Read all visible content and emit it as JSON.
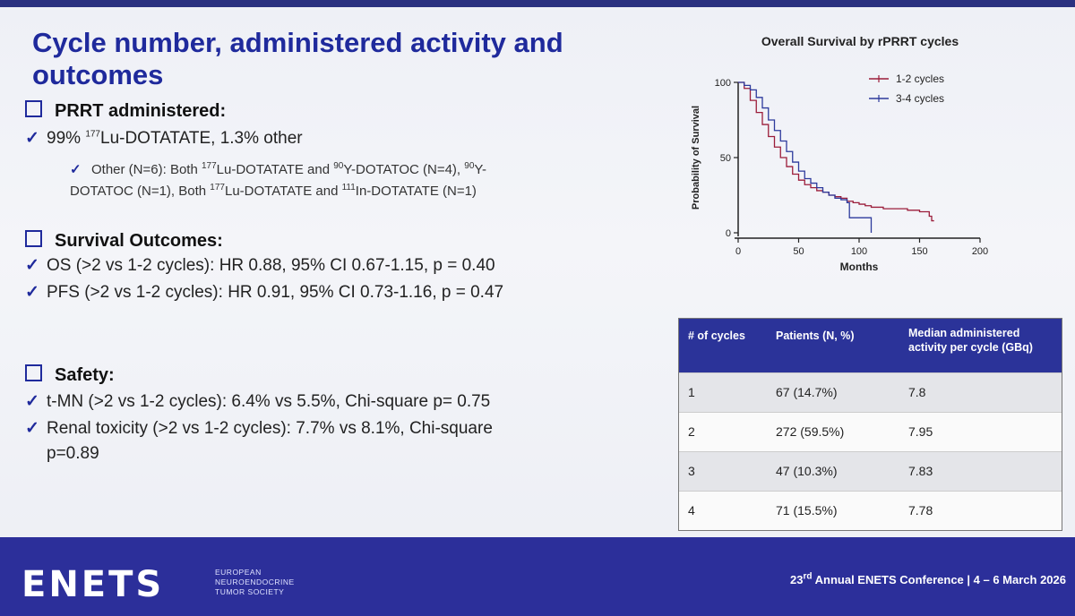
{
  "title": "Cycle number, administered activity and outcomes",
  "prrt": {
    "heading": "PRRT administered:",
    "line1_pre": "99% ",
    "line1_sup": "177",
    "line1_post": "Lu-DOTATATE, 1.3% other",
    "sub_a": "Other (N=6): Both ",
    "sub_b": "Lu-DOTATATE and ",
    "sub_c": "Y-DOTATOC (N=4), ",
    "sub_d": "Y-",
    "sub_e": "DOTATOC (N=1), Both ",
    "sub_f": "Lu-DOTATATE and ",
    "sub_g": "In-DOTATATE (N=1)",
    "sup_177": "177",
    "sup_90": "90",
    "sup_111": "111"
  },
  "survival": {
    "heading": "Survival Outcomes:",
    "os": "OS (>2 vs 1-2 cycles): HR 0.88, 95% CI 0.67-1.15, p = 0.40",
    "pfs": "PFS (>2 vs 1-2 cycles): HR 0.91, 95% CI 0.73-1.16, p = 0.47"
  },
  "safety": {
    "heading": "Safety:",
    "tmn": "t-MN (>2 vs 1-2 cycles): 6.4% vs 5.5%, Chi-square p= 0.75",
    "renal1": "Renal toxicity (>2 vs 1-2 cycles): 7.7% vs 8.1%, Chi-square",
    "renal2": "p=0.89"
  },
  "chart_data": {
    "type": "line",
    "title": "Overall Survival by rPRRT cycles",
    "xlabel": "Months",
    "ylabel": "Probability of Survival",
    "xlim": [
      0,
      200
    ],
    "ylim": [
      0,
      100
    ],
    "xticks": [
      "0",
      "50",
      "100",
      "150",
      "200"
    ],
    "yticks": [
      "0",
      "50",
      "100"
    ],
    "series": [
      {
        "name": "1-2 cycles",
        "color": "#9b1d3a",
        "x": [
          0,
          5,
          10,
          15,
          20,
          25,
          30,
          35,
          40,
          45,
          50,
          55,
          60,
          65,
          70,
          75,
          80,
          85,
          90,
          95,
          100,
          105,
          110,
          120,
          130,
          140,
          150,
          155,
          158,
          160,
          162
        ],
        "y": [
          100,
          96,
          88,
          80,
          72,
          64,
          57,
          50,
          44,
          39,
          35,
          32,
          30,
          28,
          27,
          25,
          24,
          23,
          21,
          20,
          19,
          18,
          17,
          16,
          16,
          15,
          14,
          14,
          11,
          8,
          8
        ]
      },
      {
        "name": "3-4 cycles",
        "color": "#2d3a9c",
        "x": [
          0,
          5,
          10,
          15,
          20,
          25,
          30,
          35,
          40,
          45,
          50,
          55,
          60,
          65,
          70,
          75,
          80,
          85,
          90,
          92,
          100,
          108,
          110
        ],
        "y": [
          100,
          98,
          95,
          90,
          83,
          75,
          68,
          61,
          54,
          47,
          41,
          36,
          33,
          30,
          27,
          25,
          23,
          22,
          20,
          10,
          10,
          10,
          0
        ]
      }
    ]
  },
  "table": {
    "headers": [
      "# of cycles",
      "Patients (N, %)",
      "Median administered activity per cycle (GBq)"
    ],
    "rows": [
      [
        "1",
        "67 (14.7%)",
        "7.8"
      ],
      [
        "2",
        "272 (59.5%)",
        "7.95"
      ],
      [
        "3",
        "47 (10.3%)",
        "7.83"
      ],
      [
        "4",
        "71 (15.5%)",
        "7.78"
      ]
    ]
  },
  "footer": {
    "logo": "ENETS",
    "org1": "EUROPEAN",
    "org2": "NEUROENDOCRINE",
    "org3": "TUMOR SOCIETY",
    "conf_num": "23",
    "conf_sup": "rd",
    "conf_text": " Annual ENETS Conference | 4 – 6 March 2026"
  }
}
